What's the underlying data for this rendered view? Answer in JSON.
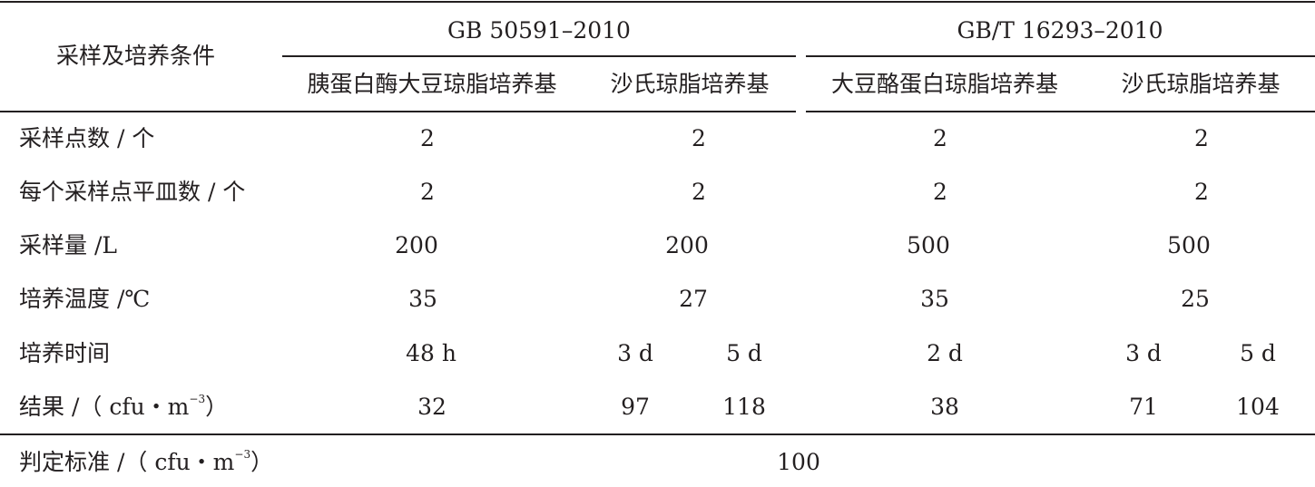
{
  "table": {
    "stub_header": "采样及培养条件",
    "standards": [
      "GB 50591–2010",
      "GB/T 16293–2010"
    ],
    "media": [
      "胰蛋白酶大豆琼脂培养基",
      "沙氏琼脂培养基",
      "大豆酪蛋白琼脂培养基",
      "沙氏琼脂培养基"
    ],
    "rows": [
      {
        "label": "采样点数 / 个",
        "cells": [
          "2",
          "2",
          "2",
          "2"
        ]
      },
      {
        "label": "每个采样点平皿数 / 个",
        "cells": [
          "2",
          "2",
          "2",
          "2"
        ]
      },
      {
        "label": "采样量 /L",
        "cells": [
          "200",
          "200",
          "500",
          "500"
        ]
      },
      {
        "label": "培养温度 /℃",
        "cells": [
          "35",
          "27",
          "35",
          "25"
        ]
      },
      {
        "label": "培养时间",
        "cells": [
          "48 h",
          "3 d",
          "5 d",
          "2 d",
          "3 d",
          "5 d"
        ]
      },
      {
        "label": "结果 /（ cfu・m",
        "label_sup": "−3",
        "label_end": "）",
        "cells": [
          "32",
          "97",
          "118",
          "38",
          "71",
          "104"
        ]
      }
    ],
    "footer": {
      "label": "判定标准 /（ cfu・m",
      "label_sup": "−3",
      "label_end": "）",
      "value": "100"
    }
  }
}
